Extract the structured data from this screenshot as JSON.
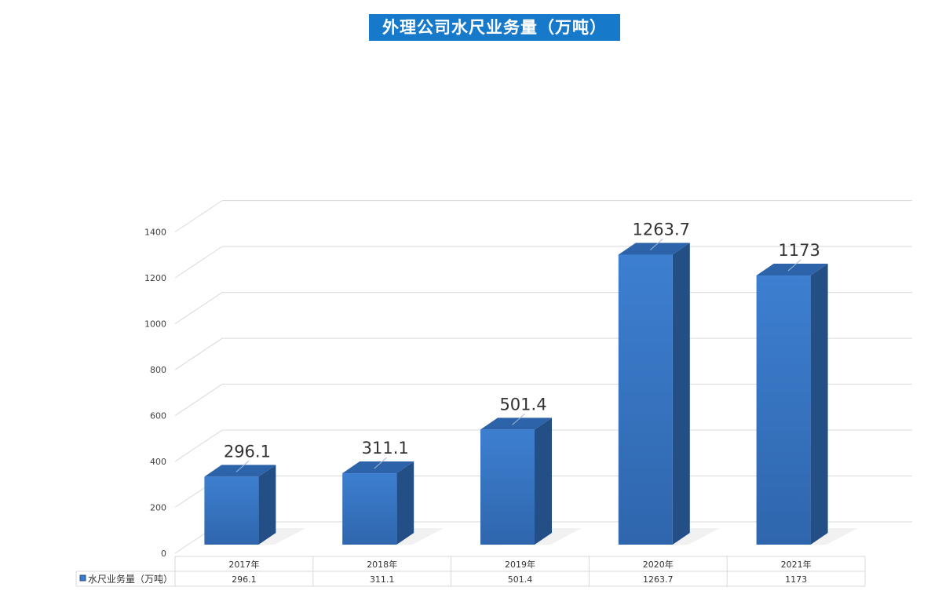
{
  "chart_data": {
    "type": "bar",
    "title": "外理公司水尺业务量（万吨）",
    "categories": [
      "2017年",
      "2018年",
      "2019年",
      "2020年",
      "2021年"
    ],
    "series": [
      {
        "name": "水尺业务量（万吨）",
        "values": [
          296.1,
          311.1,
          501.4,
          1263.7,
          1173
        ]
      }
    ],
    "value_labels": [
      "296.1",
      "311.1",
      "501.4",
      "1263.7",
      "1173"
    ],
    "ylim": [
      0,
      1400
    ],
    "yticks": [
      0,
      200,
      400,
      600,
      800,
      1000,
      1200,
      1400
    ],
    "grid": true,
    "style": "3d-column",
    "legend_position": "bottom-data-table",
    "colors": {
      "bar_front": "#3a7acb",
      "bar_side": "#244f86",
      "bar_top": "#2d63a8",
      "title_bg": "#1779c9",
      "grid": "#d9d9d9"
    }
  }
}
